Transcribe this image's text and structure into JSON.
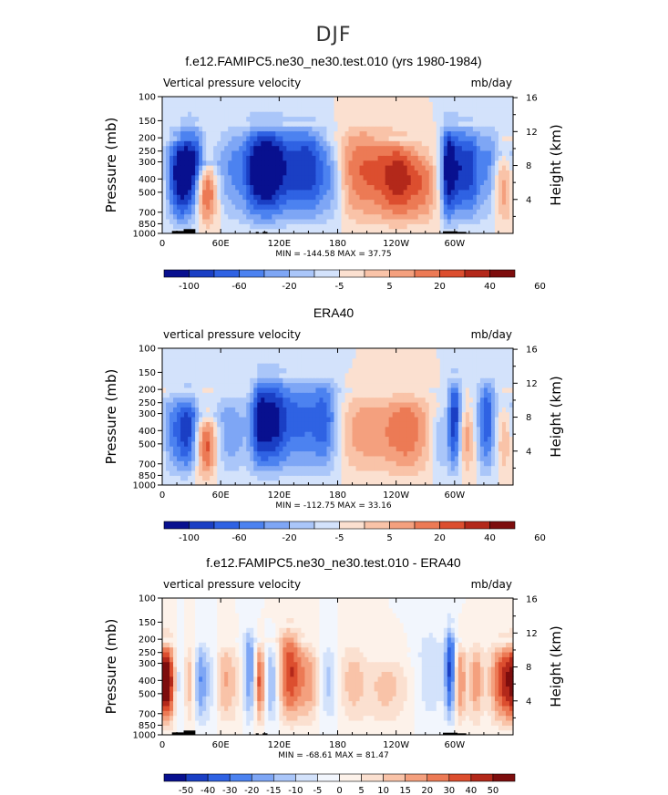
{
  "figure": {
    "title": "DJF"
  },
  "palettes": {
    "full": [
      "#08108f",
      "#1a3fc4",
      "#2f62e3",
      "#4c82f0",
      "#7ea6f5",
      "#aac6f9",
      "#d3e2fb",
      "#fbe0d0",
      "#f9c3a8",
      "#f4a07e",
      "#ec7a55",
      "#dc4e2f",
      "#b3281a",
      "#7d0d0d"
    ],
    "diff": [
      "#08108f",
      "#1a3fc4",
      "#2f62e3",
      "#4c82f0",
      "#7ea6f5",
      "#aac6f9",
      "#d3e2fb",
      "#f2f6fd",
      "#fdf2ea",
      "#fbe0d0",
      "#f9c3a8",
      "#f4a07e",
      "#ec7a55",
      "#dc4e2f",
      "#b3281a",
      "#7d0d0d"
    ]
  },
  "chart_data": [
    {
      "type": "heatmap",
      "title": "f.e12.FAMIPC5.ne30_ne30.test.010 (yrs 1980-1984)",
      "left_label": "Vertical pressure velocity",
      "right_label": "mb/day",
      "ylabel": "Pressure (mb)",
      "y2label": "Height (km)",
      "x_ticks": [
        "0",
        "60E",
        "120E",
        "180",
        "120W",
        "60W"
      ],
      "x_tick_lon": [
        0,
        60,
        120,
        180,
        240,
        300
      ],
      "xlim": [
        0,
        360
      ],
      "y_ticks": [
        100,
        150,
        200,
        250,
        300,
        400,
        500,
        700,
        850,
        1000
      ],
      "ylim": [
        1000,
        100
      ],
      "y_scale": "log",
      "y2_ticks": [
        4,
        8,
        12,
        16
      ],
      "stats": "MIN = -144.58   MAX =  37.75",
      "min": -144.58,
      "max": 37.75,
      "colorbar_labels": [
        "-100",
        "-60",
        "-20",
        "-5",
        "5",
        "20",
        "40",
        "60"
      ],
      "palette": "full",
      "topo_mask": true,
      "features": [
        {
          "lon": 10,
          "width": 14,
          "amp": -0.55,
          "ptop": 200
        },
        {
          "lon": 22,
          "width": 8,
          "amp": -0.75,
          "ptop": 150
        },
        {
          "lon": 35,
          "width": 6,
          "amp": -0.6,
          "ptop": 150
        },
        {
          "lon": 45,
          "width": 9,
          "amp": 0.8,
          "ptop": 300
        },
        {
          "lon": 55,
          "width": 8,
          "amp": -0.2,
          "ptop": 200
        },
        {
          "lon": 75,
          "width": 12,
          "amp": -0.45,
          "ptop": 150
        },
        {
          "lon": 95,
          "width": 8,
          "amp": -0.7,
          "ptop": 150
        },
        {
          "lon": 110,
          "width": 9,
          "amp": -0.8,
          "ptop": 150
        },
        {
          "lon": 130,
          "width": 14,
          "amp": -0.7,
          "ptop": 150
        },
        {
          "lon": 155,
          "width": 12,
          "amp": -0.65,
          "ptop": 150
        },
        {
          "lon": 175,
          "width": 8,
          "amp": -0.35,
          "ptop": 200
        },
        {
          "lon": 205,
          "width": 20,
          "amp": 0.55,
          "ptop": 150
        },
        {
          "lon": 245,
          "width": 16,
          "amp": 0.75,
          "ptop": 200
        },
        {
          "lon": 270,
          "width": 8,
          "amp": 0.3,
          "ptop": 250
        },
        {
          "lon": 293,
          "width": 5,
          "amp": -0.95,
          "ptop": 150
        },
        {
          "lon": 305,
          "width": 7,
          "amp": -0.75,
          "ptop": 150
        },
        {
          "lon": 318,
          "width": 6,
          "amp": -0.6,
          "ptop": 150
        },
        {
          "lon": 335,
          "width": 8,
          "amp": -0.5,
          "ptop": 150
        },
        {
          "lon": 352,
          "width": 10,
          "amp": 0.6,
          "ptop": 250
        }
      ]
    },
    {
      "type": "heatmap",
      "title": "ERA40",
      "left_label": "vertical pressure velocity",
      "right_label": "mb/day",
      "ylabel": "Pressure (mb)",
      "y2label": "Height (km)",
      "x_ticks": [
        "0",
        "60E",
        "120E",
        "180",
        "120W",
        "60W"
      ],
      "x_tick_lon": [
        0,
        60,
        120,
        180,
        240,
        300
      ],
      "xlim": [
        0,
        360
      ],
      "y_ticks": [
        100,
        150,
        200,
        250,
        300,
        400,
        500,
        700,
        850,
        1000
      ],
      "ylim": [
        1000,
        100
      ],
      "y_scale": "log",
      "y2_ticks": [
        4,
        8,
        12,
        16
      ],
      "stats": "MIN = -112.75   MAX =  33.16",
      "min": -112.75,
      "max": 33.16,
      "colorbar_labels": [
        "-100",
        "-60",
        "-20",
        "-5",
        "5",
        "20",
        "40",
        "60"
      ],
      "palette": "full",
      "topo_mask": false,
      "features": [
        {
          "lon": 12,
          "width": 14,
          "amp": -0.5,
          "ptop": 200
        },
        {
          "lon": 28,
          "width": 8,
          "amp": -0.55,
          "ptop": 200
        },
        {
          "lon": 45,
          "width": 8,
          "amp": 0.75,
          "ptop": 300
        },
        {
          "lon": 70,
          "width": 14,
          "amp": -0.4,
          "ptop": 200
        },
        {
          "lon": 100,
          "width": 7,
          "amp": -0.75,
          "ptop": 150
        },
        {
          "lon": 115,
          "width": 9,
          "amp": -0.7,
          "ptop": 150
        },
        {
          "lon": 140,
          "width": 16,
          "amp": -0.6,
          "ptop": 150
        },
        {
          "lon": 168,
          "width": 10,
          "amp": -0.55,
          "ptop": 150
        },
        {
          "lon": 205,
          "width": 18,
          "amp": 0.35,
          "ptop": 200
        },
        {
          "lon": 250,
          "width": 18,
          "amp": 0.55,
          "ptop": 200
        },
        {
          "lon": 285,
          "width": 6,
          "amp": -0.3,
          "ptop": 250
        },
        {
          "lon": 300,
          "width": 5,
          "amp": -0.85,
          "ptop": 150
        },
        {
          "lon": 312,
          "width": 6,
          "amp": 0.35,
          "ptop": 250
        },
        {
          "lon": 333,
          "width": 7,
          "amp": -0.7,
          "ptop": 150
        },
        {
          "lon": 352,
          "width": 8,
          "amp": 0.4,
          "ptop": 250
        }
      ]
    },
    {
      "type": "heatmap",
      "title": "f.e12.FAMIPC5.ne30_ne30.test.010 - ERA40",
      "left_label": "vertical pressure velocity",
      "right_label": "mb/day",
      "ylabel": "Pressure (mb)",
      "y2label": "Height (km)",
      "x_ticks": [
        "0",
        "60E",
        "120E",
        "180",
        "120W",
        "60W"
      ],
      "x_tick_lon": [
        0,
        60,
        120,
        180,
        240,
        300
      ],
      "xlim": [
        0,
        360
      ],
      "y_ticks": [
        100,
        150,
        200,
        250,
        300,
        400,
        500,
        700,
        850,
        1000
      ],
      "ylim": [
        1000,
        100
      ],
      "y_scale": "log",
      "y2_ticks": [
        4,
        8,
        12,
        16
      ],
      "stats": "MIN = -68.61   MAX =  81.47",
      "min": -68.61,
      "max": 81.47,
      "colorbar_labels": [
        "-50",
        "-40",
        "-30",
        "-20",
        "-15",
        "-10",
        "-5",
        "0",
        "5",
        "10",
        "15",
        "20",
        "30",
        "40",
        "50"
      ],
      "palette": "diff",
      "topo_mask": true,
      "features": [
        {
          "lon": 6,
          "width": 7,
          "amp": 0.85,
          "ptop": 200
        },
        {
          "lon": 18,
          "width": 5,
          "amp": -0.5,
          "ptop": 200
        },
        {
          "lon": 28,
          "width": 6,
          "amp": 0.45,
          "ptop": 200
        },
        {
          "lon": 38,
          "width": 5,
          "amp": -0.55,
          "ptop": 200
        },
        {
          "lon": 50,
          "width": 6,
          "amp": -0.3,
          "ptop": 200
        },
        {
          "lon": 65,
          "width": 10,
          "amp": 0.4,
          "ptop": 200
        },
        {
          "lon": 90,
          "width": 5,
          "amp": -0.55,
          "ptop": 150
        },
        {
          "lon": 100,
          "width": 4,
          "amp": 0.75,
          "ptop": 200
        },
        {
          "lon": 112,
          "width": 5,
          "amp": -0.45,
          "ptop": 200
        },
        {
          "lon": 130,
          "width": 8,
          "amp": 0.7,
          "ptop": 150
        },
        {
          "lon": 150,
          "width": 10,
          "amp": 0.45,
          "ptop": 200
        },
        {
          "lon": 170,
          "width": 7,
          "amp": -0.35,
          "ptop": 200
        },
        {
          "lon": 195,
          "width": 10,
          "amp": 0.3,
          "ptop": 200
        },
        {
          "lon": 230,
          "width": 16,
          "amp": 0.3,
          "ptop": 250
        },
        {
          "lon": 275,
          "width": 10,
          "amp": -0.25,
          "ptop": 150
        },
        {
          "lon": 296,
          "width": 4,
          "amp": -0.85,
          "ptop": 150
        },
        {
          "lon": 305,
          "width": 5,
          "amp": 0.55,
          "ptop": 200
        },
        {
          "lon": 322,
          "width": 5,
          "amp": 0.45,
          "ptop": 200
        },
        {
          "lon": 350,
          "width": 10,
          "amp": 0.75,
          "ptop": 200
        }
      ]
    }
  ]
}
